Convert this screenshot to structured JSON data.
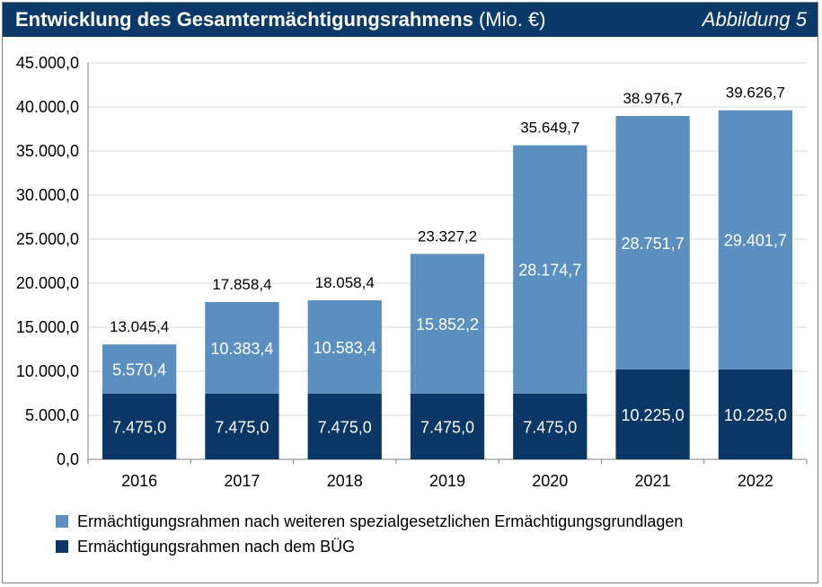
{
  "header": {
    "title": "Entwicklung des Gesamtermächtigungsrahmens",
    "unit": "(Mio. €)",
    "figure_label": "Abbildung 5"
  },
  "colors": {
    "bottom": "#0a3766",
    "top": "#5b8fc0",
    "header_bg": "#0b3a6a"
  },
  "chart_data": {
    "type": "bar",
    "stacked": true,
    "title": "Entwicklung des Gesamtermächtigungsrahmens (Mio. €)",
    "categories": [
      "2016",
      "2017",
      "2018",
      "2019",
      "2020",
      "2021",
      "2022"
    ],
    "series": [
      {
        "name": "Ermächtigungsrahmen nach dem BÜG",
        "values": [
          7475.0,
          7475.0,
          7475.0,
          7475.0,
          7475.0,
          10225.0,
          10225.0
        ],
        "labels": [
          "7.475,0",
          "7.475,0",
          "7.475,0",
          "7.475,0",
          "7.475,0",
          "10.225,0",
          "10.225,0"
        ]
      },
      {
        "name": "Ermächtigungsrahmen nach weiteren spezialgesetzlichen Ermächtigungsgrundlagen",
        "values": [
          5570.4,
          10383.4,
          10583.4,
          15852.2,
          28174.7,
          28751.7,
          29401.7
        ],
        "labels": [
          "5.570,4",
          "10.383,4",
          "10.583,4",
          "15.852,2",
          "28.174,7",
          "28.751,7",
          "29.401,7"
        ]
      }
    ],
    "totals": [
      13045.4,
      17858.4,
      18058.4,
      23327.2,
      35649.7,
      38976.7,
      39626.7
    ],
    "total_labels": [
      "13.045,4",
      "17.858,4",
      "18.058,4",
      "23.327,2",
      "35.649,7",
      "38.976,7",
      "39.626,7"
    ],
    "ylim": [
      0,
      45000
    ],
    "yticks": [
      0,
      5000,
      10000,
      15000,
      20000,
      25000,
      30000,
      35000,
      40000,
      45000
    ],
    "ytick_labels": [
      "0,0",
      "5.000,0",
      "10.000,0",
      "15.000,0",
      "20.000,0",
      "25.000,0",
      "30.000,0",
      "35.000,0",
      "40.000,0",
      "45.000,0"
    ],
    "grid": true,
    "legend": [
      "Ermächtigungsrahmen nach weiteren spezialgesetzlichen Ermächtigungsgrundlagen",
      "Ermächtigungsrahmen nach dem BÜG"
    ],
    "legend_position": "bottom"
  }
}
